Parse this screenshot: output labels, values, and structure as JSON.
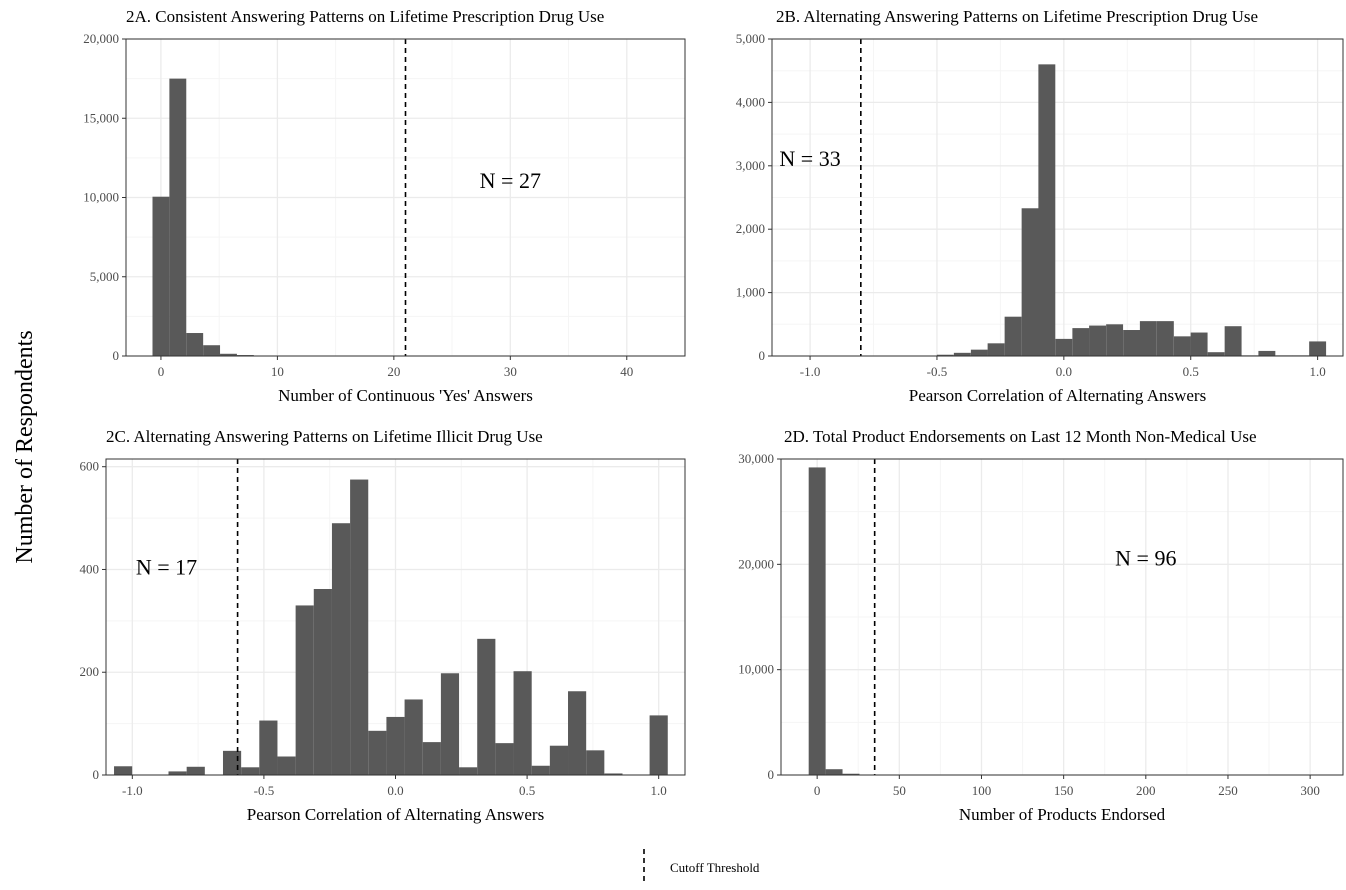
{
  "figure": {
    "shared_ylabel": "Number of Respondents",
    "legend": {
      "label": "Cutoff Threshold",
      "placement": "bottom-center",
      "line_style": "dashed"
    }
  },
  "colors": {
    "bar": "#595959",
    "grid_major": "#ebebeb",
    "grid_minor": "#f5f5f5",
    "border": "#333333",
    "threshold": "#000000"
  },
  "chart_data": [
    {
      "id": "a",
      "type": "bar",
      "title": "2A. Consistent Answering Patterns on Lifetime Prescription Drug Use",
      "xlabel": "Number of Continuous 'Yes' Answers",
      "xlim": [
        -3,
        45
      ],
      "ylim": [
        0,
        20000
      ],
      "xticks": [
        0,
        10,
        20,
        30,
        40
      ],
      "xtick_labels": [
        "0",
        "10",
        "20",
        "30",
        "40"
      ],
      "yticks": [
        0,
        5000,
        10000,
        15000,
        20000
      ],
      "ytick_labels": [
        "0",
        "5,000",
        "10,000",
        "15,000",
        "20,000"
      ],
      "bin_width": 1.45,
      "bins": [
        {
          "x": 0,
          "y": 10050
        },
        {
          "x": 1.45,
          "y": 17500
        },
        {
          "x": 2.9,
          "y": 1450
        },
        {
          "x": 4.35,
          "y": 680
        },
        {
          "x": 5.8,
          "y": 140
        },
        {
          "x": 7.25,
          "y": 60
        },
        {
          "x": 8.7,
          "y": 30
        },
        {
          "x": 10.15,
          "y": 15
        }
      ],
      "threshold": 21,
      "annotation": {
        "text": "N = 27",
        "x": 30,
        "y": 10600
      }
    },
    {
      "id": "b",
      "type": "bar",
      "title": "2B. Alternating Answering Patterns on Lifetime Prescription Drug Use",
      "xlabel": "Pearson Correlation of Alternating Answers",
      "xlim": [
        -1.15,
        1.1
      ],
      "ylim": [
        0,
        5000
      ],
      "xticks": [
        -1.0,
        -0.5,
        0.0,
        0.5,
        1.0
      ],
      "xtick_labels": [
        "-1.0",
        "-0.5",
        "0.0",
        "0.5",
        "1.0"
      ],
      "yticks": [
        0,
        1000,
        2000,
        3000,
        4000,
        5000
      ],
      "ytick_labels": [
        "0",
        "1,000",
        "2,000",
        "3,000",
        "4,000",
        "5,000"
      ],
      "bin_width": 0.0667,
      "bins": [
        {
          "x": -0.6,
          "y": 5
        },
        {
          "x": -0.533,
          "y": 8
        },
        {
          "x": -0.467,
          "y": 20
        },
        {
          "x": -0.4,
          "y": 50
        },
        {
          "x": -0.333,
          "y": 100
        },
        {
          "x": -0.267,
          "y": 200
        },
        {
          "x": -0.2,
          "y": 620
        },
        {
          "x": -0.133,
          "y": 2330
        },
        {
          "x": -0.067,
          "y": 4600
        },
        {
          "x": 0.0,
          "y": 270
        },
        {
          "x": 0.067,
          "y": 440
        },
        {
          "x": 0.133,
          "y": 480
        },
        {
          "x": 0.2,
          "y": 500
        },
        {
          "x": 0.267,
          "y": 410
        },
        {
          "x": 0.333,
          "y": 550
        },
        {
          "x": 0.4,
          "y": 550
        },
        {
          "x": 0.467,
          "y": 310
        },
        {
          "x": 0.533,
          "y": 370
        },
        {
          "x": 0.6,
          "y": 60
        },
        {
          "x": 0.667,
          "y": 470
        },
        {
          "x": 0.733,
          "y": 10
        },
        {
          "x": 0.8,
          "y": 80
        },
        {
          "x": 0.867,
          "y": 10
        },
        {
          "x": 0.933,
          "y": 10
        },
        {
          "x": 1.0,
          "y": 230
        }
      ],
      "threshold": -0.8,
      "annotation": {
        "text": "N = 33",
        "x": -1.0,
        "y": 3000
      }
    },
    {
      "id": "c",
      "type": "bar",
      "title": "2C. Alternating Answering Patterns on Lifetime Illicit Drug Use",
      "xlabel": "Pearson Correlation of Alternating Answers",
      "xlim": [
        -1.1,
        1.1
      ],
      "ylim": [
        0,
        615
      ],
      "xticks": [
        -1.0,
        -0.5,
        0.0,
        0.5,
        1.0
      ],
      "xtick_labels": [
        "-1.0",
        "-0.5",
        "0.0",
        "0.5",
        "1.0"
      ],
      "yticks": [
        0,
        200,
        400,
        600
      ],
      "ytick_labels": [
        "0",
        "200",
        "400",
        "600"
      ],
      "bin_width": 0.069,
      "bins": [
        {
          "x": -1.035,
          "y": 17
        },
        {
          "x": -0.966,
          "y": 0
        },
        {
          "x": -0.897,
          "y": 0
        },
        {
          "x": -0.828,
          "y": 7
        },
        {
          "x": -0.759,
          "y": 16
        },
        {
          "x": -0.69,
          "y": 0
        },
        {
          "x": -0.621,
          "y": 47
        },
        {
          "x": -0.552,
          "y": 15
        },
        {
          "x": -0.483,
          "y": 106
        },
        {
          "x": -0.414,
          "y": 36
        },
        {
          "x": -0.345,
          "y": 330
        },
        {
          "x": -0.276,
          "y": 362
        },
        {
          "x": -0.207,
          "y": 490
        },
        {
          "x": -0.138,
          "y": 575
        },
        {
          "x": -0.069,
          "y": 86
        },
        {
          "x": 0.0,
          "y": 113
        },
        {
          "x": 0.069,
          "y": 147
        },
        {
          "x": 0.138,
          "y": 64
        },
        {
          "x": 0.207,
          "y": 198
        },
        {
          "x": 0.276,
          "y": 15
        },
        {
          "x": 0.345,
          "y": 265
        },
        {
          "x": 0.414,
          "y": 62
        },
        {
          "x": 0.483,
          "y": 202
        },
        {
          "x": 0.552,
          "y": 18
        },
        {
          "x": 0.621,
          "y": 57
        },
        {
          "x": 0.69,
          "y": 163
        },
        {
          "x": 0.759,
          "y": 48
        },
        {
          "x": 0.828,
          "y": 3
        },
        {
          "x": 0.897,
          "y": 0
        },
        {
          "x": 0.966,
          "y": 0
        },
        {
          "x": 1.0,
          "y": 116
        }
      ],
      "threshold": -0.6,
      "annotation": {
        "text": "N = 17",
        "x": -0.87,
        "y": 390
      }
    },
    {
      "id": "d",
      "type": "bar",
      "title": "2D. Total Product Endorsements on Last 12 Month Non-Medical Use",
      "xlabel": "Number of Products Endorsed",
      "xlim": [
        -22,
        320
      ],
      "ylim": [
        0,
        30000
      ],
      "xticks": [
        0,
        50,
        100,
        150,
        200,
        250,
        300
      ],
      "xtick_labels": [
        "0",
        "50",
        "100",
        "150",
        "200",
        "250",
        "300"
      ],
      "yticks": [
        0,
        10000,
        20000,
        30000
      ],
      "ytick_labels": [
        "0",
        "10,000",
        "20,000",
        "30,000"
      ],
      "bin_width": 10.3,
      "bins": [
        {
          "x": 0,
          "y": 29200
        },
        {
          "x": 10.3,
          "y": 550
        },
        {
          "x": 20.6,
          "y": 120
        },
        {
          "x": 30.9,
          "y": 30
        },
        {
          "x": 41.2,
          "y": 10
        }
      ],
      "threshold": 35,
      "annotation": {
        "text": "N = 96",
        "x": 200,
        "y": 19900
      }
    }
  ]
}
